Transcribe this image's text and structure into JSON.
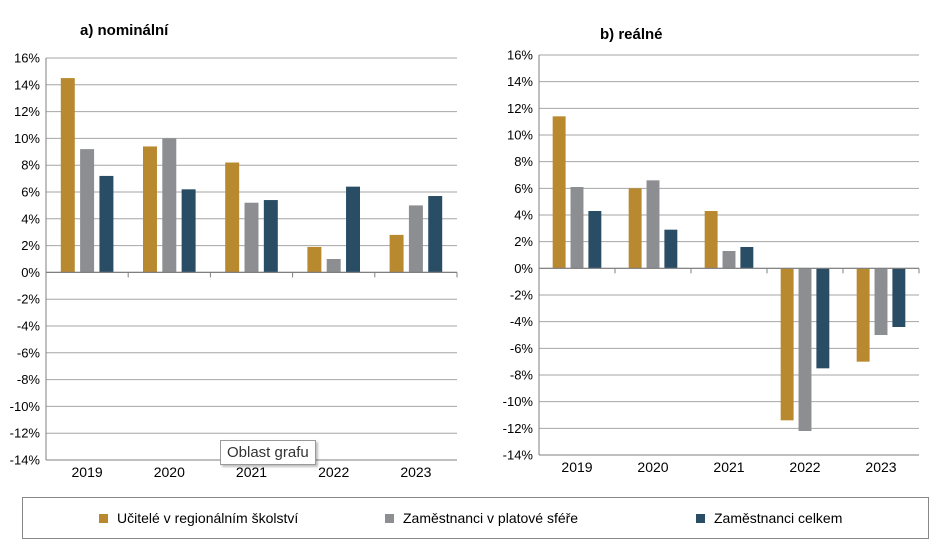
{
  "legend": {
    "items": [
      {
        "label": "Učitelé v regionálním školství",
        "color": "#b8892e"
      },
      {
        "label": "Zaměstnanci v platové sféře",
        "color": "#8c8e91"
      },
      {
        "label": "Zaměstnanci celkem",
        "color": "#2a4d66"
      }
    ]
  },
  "tooltip": {
    "text": "Oblast grafu"
  },
  "chart_data": [
    {
      "type": "bar",
      "title": "a) nominální",
      "categories": [
        "2019",
        "2020",
        "2021",
        "2022",
        "2023"
      ],
      "ylim": [
        -14,
        16
      ],
      "ytick_step": 2,
      "ytick_format": "%",
      "grid": true,
      "series": [
        {
          "name": "Učitelé v regionálním školství",
          "values": [
            14.5,
            9.4,
            8.2,
            1.9,
            2.8
          ]
        },
        {
          "name": "Zaměstnanci v platové sféře",
          "values": [
            9.2,
            10.0,
            5.2,
            1.0,
            5.0
          ]
        },
        {
          "name": "Zaměstnanci celkem",
          "values": [
            7.2,
            6.2,
            5.4,
            6.4,
            5.7
          ]
        }
      ]
    },
    {
      "type": "bar",
      "title": "b) reálné",
      "categories": [
        "2019",
        "2020",
        "2021",
        "2022",
        "2023"
      ],
      "ylim": [
        -14,
        16
      ],
      "ytick_step": 2,
      "ytick_format": "%",
      "grid": true,
      "series": [
        {
          "name": "Učitelé v regionálním školství",
          "values": [
            11.4,
            6.0,
            4.3,
            -11.4,
            -7.0
          ]
        },
        {
          "name": "Zaměstnanci v platové sféře",
          "values": [
            6.1,
            6.6,
            1.3,
            -12.2,
            -5.0
          ]
        },
        {
          "name": "Zaměstnanci celkem",
          "values": [
            4.3,
            2.9,
            1.6,
            -7.5,
            -4.4
          ]
        }
      ]
    }
  ]
}
